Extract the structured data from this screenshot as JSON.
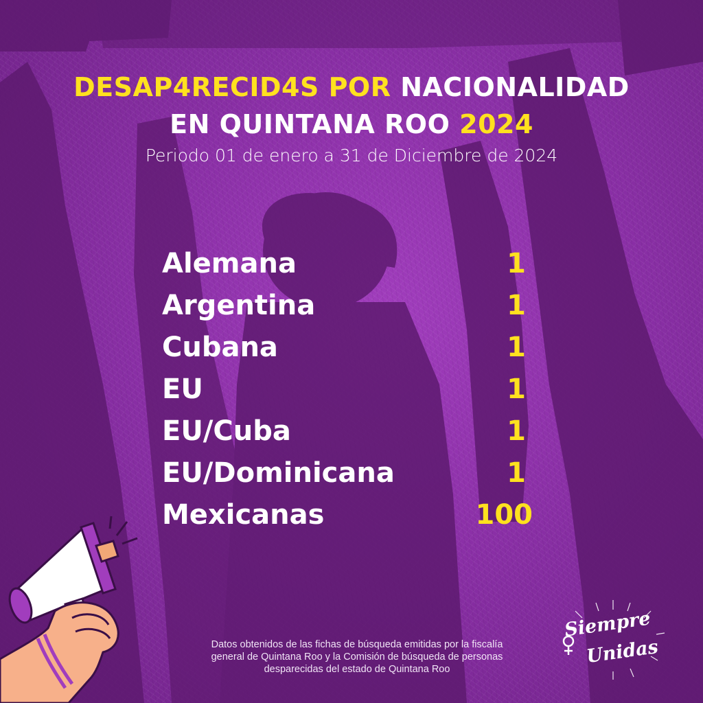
{
  "title": {
    "line1_highlight": "DESAP4RECID4S POR",
    "line1_rest": "NACIONALIDAD",
    "line2_rest": "EN QUINTANA ROO",
    "line2_highlight": "2024"
  },
  "subtitle": "Periodo 01 de enero a 31 de Diciembre de 2024",
  "table": {
    "rows": [
      {
        "label": "Alemana",
        "value": "1"
      },
      {
        "label": "Argentina",
        "value": "1"
      },
      {
        "label": "Cubana",
        "value": "1"
      },
      {
        "label": "EU",
        "value": "1"
      },
      {
        "label": "EU/Cuba",
        "value": "1"
      },
      {
        "label": "EU/Dominicana",
        "value": "1"
      },
      {
        "label": "Mexicanas",
        "value": "100"
      }
    ]
  },
  "footer": {
    "line1": "Datos obtenidos de las fichas de búsqueda emitidas por la fiscalía",
    "line2": "general de Quintana Roo y la Comisión de búsqueda de personas",
    "line3": "desparecidas del estado de Quintana Roo"
  },
  "logo": {
    "line1": "Siempre",
    "line2": "Unidas"
  },
  "colors": {
    "background": "#8a2fa6",
    "accent_yellow": "#ffe11f",
    "silhouette": "#5e1b70",
    "text": "#ffffff"
  },
  "icons": [
    "megaphone-icon",
    "hand-icon",
    "venus-symbol-icon"
  ]
}
